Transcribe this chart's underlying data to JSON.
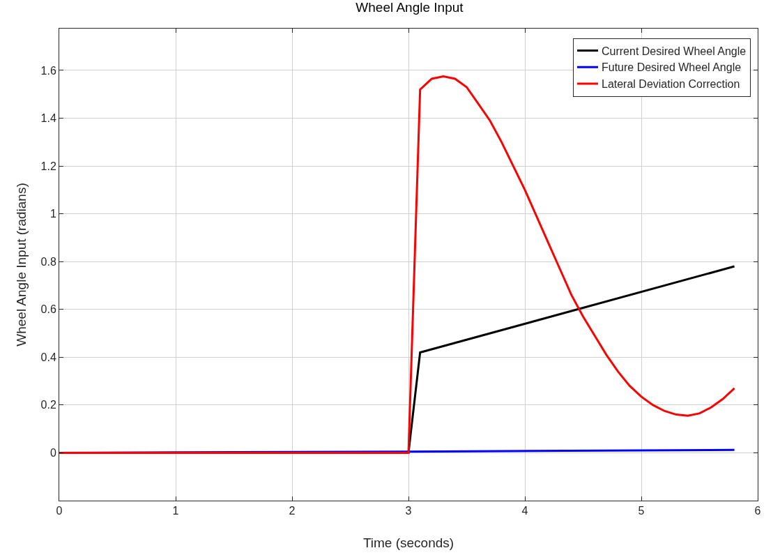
{
  "chart_data": {
    "type": "line",
    "title": "Wheel Angle Input",
    "xlabel": "Time (seconds)",
    "ylabel": "Wheel Angle Input (radians)",
    "xlim": [
      0,
      6
    ],
    "xticks": [
      0,
      1,
      2,
      3,
      4,
      5,
      6
    ],
    "ylim": [
      -0.2,
      1.775
    ],
    "yticks": [
      0,
      0.2,
      0.4,
      0.6,
      0.8,
      1,
      1.2,
      1.4,
      1.6
    ],
    "grid": true,
    "legend": "top right",
    "marker": "none",
    "line_style": "solid",
    "series": [
      {
        "name": "Current Desired Wheel Angle",
        "color": "#000000",
        "x": [
          0,
          3,
          3.1,
          5.8
        ],
        "values": [
          0,
          0,
          0.42,
          0.78
        ]
      },
      {
        "name": "Future Desired Wheel Angle",
        "color": "#0000ff",
        "x": [
          0,
          3,
          5.8
        ],
        "values": [
          0,
          0.005,
          0.012
        ]
      },
      {
        "name": "Lateral Deviation Correction",
        "color": "#ff0000",
        "x": [
          0,
          3,
          3.1,
          3.2,
          3.3,
          3.4,
          3.5,
          3.6,
          3.7,
          3.8,
          3.9,
          4,
          4.1,
          4.2,
          4.3,
          4.4,
          4.5,
          4.6,
          4.7,
          4.8,
          4.9,
          5,
          5.1,
          5.2,
          5.3,
          5.4,
          5.5,
          5.6,
          5.7,
          5.8
        ],
        "values": [
          0,
          0,
          1.52,
          1.565,
          1.575,
          1.565,
          1.53,
          1.46,
          1.39,
          1.3,
          1.2,
          1.1,
          0.99,
          0.88,
          0.77,
          0.66,
          0.57,
          0.49,
          0.41,
          0.34,
          0.28,
          0.235,
          0.2,
          0.175,
          0.16,
          0.155,
          0.165,
          0.19,
          0.225,
          0.27
        ]
      }
    ]
  }
}
